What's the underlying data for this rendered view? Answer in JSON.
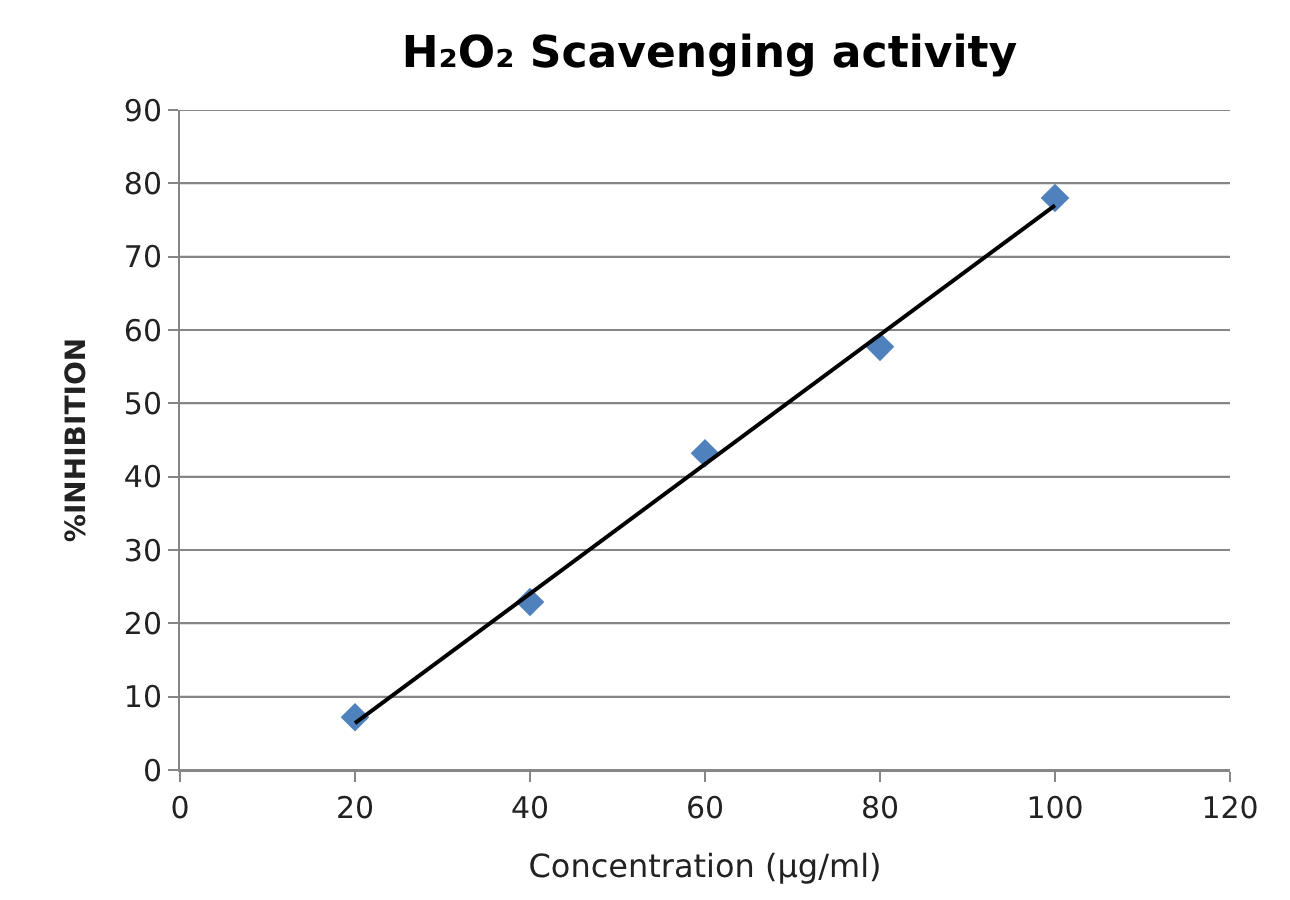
{
  "chart_data": {
    "type": "scatter",
    "title": "H₂O₂ Scavenging activity",
    "xlabel": "Concentration (µg/ml)",
    "ylabel": "%INHIBITION",
    "x": [
      20,
      40,
      60,
      80,
      100
    ],
    "series": [
      {
        "color": "#4f81bd",
        "values": [
          7.2,
          22.9,
          43.2,
          57.7,
          78.0
        ],
        "marker": "diamond"
      },
      {
        "type": "line",
        "color": "#000000",
        "x": [
          20,
          100
        ],
        "values": [
          6.4,
          77.0
        ],
        "marker": "none",
        "line_style": "solid"
      }
    ],
    "xlim": [
      0,
      120
    ],
    "xticks": [
      0,
      20,
      40,
      60,
      80,
      100,
      120
    ],
    "ylim": [
      0,
      90
    ],
    "yticks": [
      0,
      10,
      20,
      30,
      40,
      50,
      60,
      70,
      80,
      90
    ],
    "grid": "y"
  }
}
